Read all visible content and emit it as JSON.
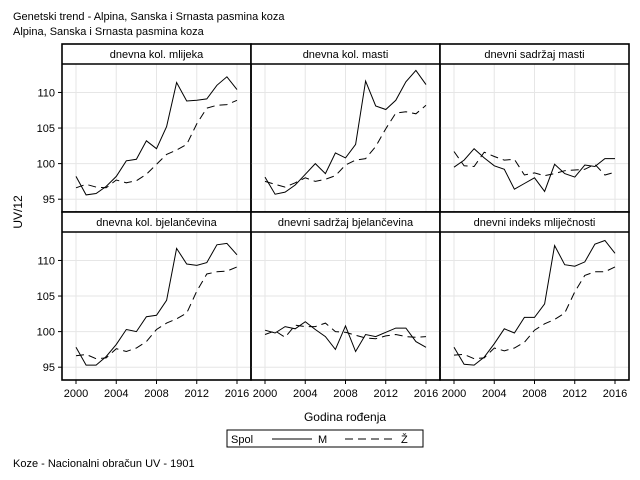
{
  "titles": {
    "line1": "Genetski trend - Alpina, Sanska i Srnasta pasmina koza",
    "line2": "Alpina, Sanska i Srnasta pasmina koza"
  },
  "footnote": "Koze - Nacionalni obračun UV - 1901",
  "chart_data": {
    "type": "line",
    "layout": "small-multiples 2x3",
    "xlabel": "Godina rođenja",
    "ylabel": "UV/12",
    "x": [
      2000,
      2001,
      2002,
      2003,
      2004,
      2005,
      2006,
      2007,
      2008,
      2009,
      2010,
      2011,
      2012,
      2013,
      2014,
      2015,
      2016
    ],
    "xticks": [
      2000,
      2004,
      2008,
      2012,
      2016
    ],
    "yticks": [
      95,
      100,
      105,
      110
    ],
    "ylim": [
      93.2,
      114
    ],
    "grid": true,
    "legend": {
      "title": "Spol",
      "position": "bottom-center",
      "entries": [
        {
          "name": "M",
          "style": "solid"
        },
        {
          "name": "Ž",
          "style": "dashed"
        }
      ]
    },
    "panels": [
      {
        "title": "dnevna kol. mlijeka",
        "series": [
          {
            "name": "M",
            "values": [
              98.2,
              95.6,
              95.8,
              96.8,
              98.2,
              100.4,
              100.6,
              103.2,
              102.1,
              105.2,
              111.4,
              108.8,
              108.9,
              109.1,
              111.0,
              112.2,
              110.4
            ]
          },
          {
            "name": "Ž",
            "values": [
              96.6,
              97.1,
              96.7,
              96.6,
              97.7,
              97.3,
              97.6,
              98.5,
              99.9,
              101.3,
              101.9,
              102.7,
              105.6,
              107.8,
              108.2,
              108.3,
              108.9
            ]
          }
        ]
      },
      {
        "title": "dnevna kol. masti",
        "series": [
          {
            "name": "M",
            "values": [
              98.1,
              95.7,
              96.0,
              97.0,
              98.5,
              100.0,
              98.6,
              101.5,
              100.8,
              102.7,
              111.6,
              108.1,
              107.6,
              108.9,
              111.5,
              113.1,
              111.1
            ]
          },
          {
            "name": "Ž",
            "values": [
              97.5,
              97.1,
              96.7,
              97.3,
              98.0,
              97.5,
              97.8,
              98.3,
              99.8,
              100.5,
              100.7,
              102.4,
              104.9,
              107.1,
              107.3,
              107.0,
              108.2
            ]
          }
        ]
      },
      {
        "title": "dnevni sadržaj masti",
        "series": [
          {
            "name": "M",
            "values": [
              99.5,
              100.5,
              102.1,
              100.8,
              99.7,
              99.2,
              96.4,
              97.2,
              98.0,
              96.1,
              99.9,
              98.6,
              98.1,
              99.8,
              99.6,
              100.7,
              100.7
            ]
          },
          {
            "name": "Ž",
            "values": [
              101.7,
              99.7,
              99.6,
              101.6,
              101.0,
              100.5,
              100.6,
              98.4,
              98.7,
              98.3,
              98.6,
              99.0,
              99.1,
              99.2,
              99.9,
              98.4,
              98.8
            ]
          }
        ]
      },
      {
        "title": "dnevna kol. bjelančevina",
        "series": [
          {
            "name": "M",
            "values": [
              97.8,
              95.3,
              95.3,
              96.5,
              98.2,
              100.3,
              100.0,
              102.1,
              102.3,
              104.4,
              111.7,
              109.5,
              109.3,
              109.7,
              112.2,
              112.4,
              110.8
            ]
          },
          {
            "name": "Ž",
            "values": [
              96.6,
              96.8,
              96.2,
              96.3,
              97.6,
              97.2,
              97.7,
              98.6,
              100.3,
              101.2,
              101.8,
              102.6,
              105.7,
              108.1,
              108.4,
              108.5,
              109.1
            ]
          }
        ]
      },
      {
        "title": "dnevni sadržaj bjelančevina",
        "series": [
          {
            "name": "M",
            "values": [
              100.2,
              99.8,
              100.7,
              100.4,
              101.4,
              100.3,
              99.3,
              97.5,
              100.8,
              97.2,
              99.6,
              99.3,
              99.9,
              100.5,
              100.5,
              98.6,
              97.8
            ]
          },
          {
            "name": "Ž",
            "values": [
              99.6,
              100.1,
              99.2,
              100.9,
              100.7,
              100.7,
              101.2,
              100.0,
              99.9,
              99.5,
              99.1,
              99.0,
              99.4,
              99.6,
              99.3,
              99.2,
              99.3
            ]
          }
        ]
      },
      {
        "title": "dnevni indeks mliječnosti",
        "series": [
          {
            "name": "M",
            "values": [
              97.8,
              95.4,
              95.3,
              96.4,
              98.3,
              100.4,
              99.8,
              102.0,
              102.0,
              103.9,
              112.1,
              109.4,
              109.2,
              109.8,
              112.3,
              112.8,
              111.0
            ]
          },
          {
            "name": "Ž",
            "values": [
              96.7,
              96.8,
              96.2,
              96.3,
              97.7,
              97.3,
              97.7,
              98.5,
              100.2,
              101.1,
              101.7,
              102.6,
              105.6,
              107.9,
              108.4,
              108.4,
              109.1
            ]
          }
        ]
      }
    ]
  }
}
